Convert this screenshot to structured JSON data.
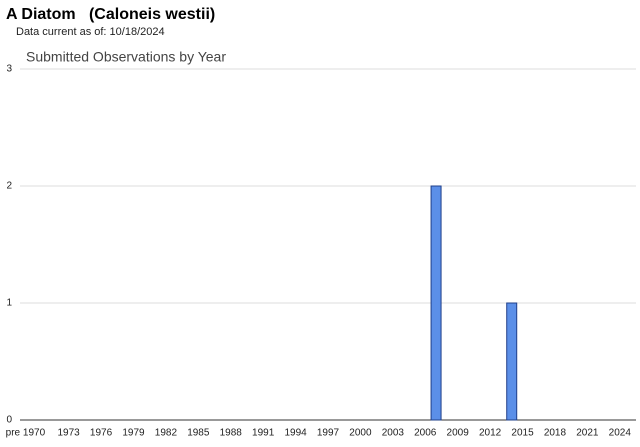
{
  "header": {
    "title": "A Diatom   (Caloneis westii)",
    "subtitle": "Data current as of: 10/18/2024"
  },
  "chart_data": {
    "type": "bar",
    "title": "Submitted Observations by Year",
    "categories": [
      "pre 1970",
      null,
      null,
      null,
      "1973",
      null,
      null,
      "1976",
      null,
      null,
      "1979",
      null,
      null,
      "1982",
      null,
      null,
      "1985",
      null,
      null,
      "1988",
      null,
      null,
      "1991",
      null,
      null,
      "1994",
      null,
      null,
      "1997",
      null,
      null,
      "2000",
      null,
      null,
      "2003",
      null,
      null,
      "2006",
      null,
      null,
      "2009",
      null,
      null,
      "2012",
      null,
      null,
      "2015",
      null,
      null,
      "2018",
      null,
      null,
      "2021",
      null,
      null,
      "2024",
      null
    ],
    "values": [
      0,
      0,
      0,
      0,
      0,
      0,
      0,
      0,
      0,
      0,
      0,
      0,
      0,
      0,
      0,
      0,
      0,
      0,
      0,
      0,
      0,
      0,
      0,
      0,
      0,
      0,
      0,
      0,
      0,
      0,
      0,
      0,
      0,
      0,
      0,
      0,
      0,
      0,
      2,
      0,
      0,
      0,
      0,
      0,
      0,
      1,
      0,
      0,
      0,
      0,
      0,
      0,
      0,
      0,
      0,
      0,
      0
    ],
    "color": "#5b8fe8",
    "ylim": [
      0,
      3
    ],
    "yticks": [
      0,
      1,
      2,
      3
    ],
    "grid": true
  }
}
